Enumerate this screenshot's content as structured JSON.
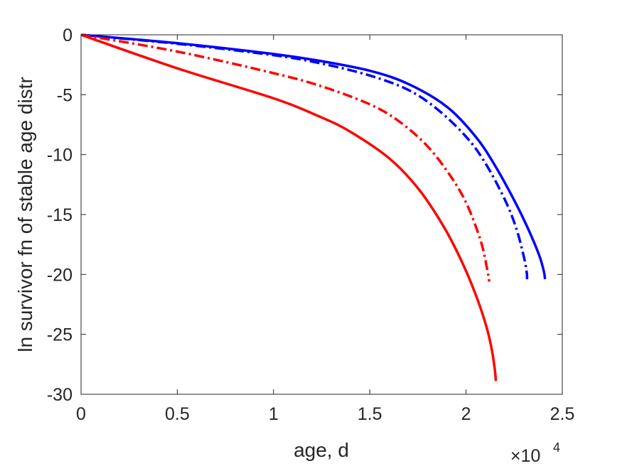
{
  "chart_data": {
    "type": "line",
    "title": "",
    "xlabel": "age, d",
    "ylabel": "ln survivor fn of stable age distr",
    "x_exponent_label": "×10",
    "x_exponent_power": "4",
    "xlim": [
      0,
      25000
    ],
    "ylim": [
      -30,
      0
    ],
    "xticks": [
      0,
      5000,
      10000,
      15000,
      20000,
      25000
    ],
    "xtick_labels": [
      "0",
      "0.5",
      "1",
      "1.5",
      "2",
      "2.5"
    ],
    "yticks": [
      0,
      -5,
      -10,
      -15,
      -20,
      -25,
      -30
    ],
    "ytick_labels": [
      "0",
      "-5",
      "-10",
      "-15",
      "-20",
      "-25",
      "-30"
    ],
    "grid": false,
    "legend": "none",
    "series": [
      {
        "color": "#0000ff",
        "style": "solid",
        "x": [
          0,
          5000,
          10000,
          12500,
          15000,
          17000,
          19000,
          20500,
          21500,
          22500,
          23200,
          23800,
          24050,
          24100
        ],
        "y": [
          0,
          -0.7,
          -1.6,
          -2.2,
          -3.0,
          -4.1,
          -6.0,
          -8.5,
          -10.9,
          -13.8,
          -16.1,
          -18.4,
          -19.8,
          -20.4
        ]
      },
      {
        "color": "#0000ff",
        "style": "dashdot",
        "x": [
          0,
          5000,
          10000,
          12500,
          15000,
          17000,
          18500,
          20000,
          21000,
          22000,
          22600,
          23000,
          23150,
          23170
        ],
        "y": [
          0,
          -0.75,
          -1.7,
          -2.4,
          -3.4,
          -4.6,
          -6.2,
          -8.5,
          -10.7,
          -13.7,
          -16.1,
          -18.5,
          -19.8,
          -20.4
        ]
      },
      {
        "color": "#ff0000",
        "style": "dashdot",
        "x": [
          0,
          5000,
          10000,
          12500,
          15000,
          16500,
          18000,
          19200,
          20000,
          20600,
          20900,
          21100,
          21180,
          21200
        ],
        "y": [
          0,
          -1.4,
          -3.2,
          -4.3,
          -5.8,
          -7.2,
          -9.3,
          -11.8,
          -14.0,
          -16.4,
          -18.0,
          -19.6,
          -20.3,
          -20.6
        ]
      },
      {
        "color": "#ff0000",
        "style": "solid",
        "x": [
          0,
          5000,
          10000,
          12500,
          14000,
          16000,
          17500,
          18800,
          19800,
          20600,
          21100,
          21350,
          21500,
          21550
        ],
        "y": [
          0,
          -2.8,
          -5.3,
          -6.9,
          -8.1,
          -10.3,
          -12.8,
          -15.9,
          -19.0,
          -22.1,
          -24.6,
          -26.4,
          -28.0,
          -28.9
        ]
      }
    ]
  }
}
